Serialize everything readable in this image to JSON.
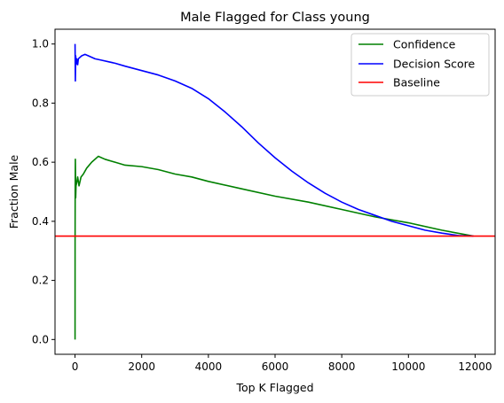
{
  "chart_data": {
    "type": "line",
    "title": "Male Flagged for Class young",
    "xlabel": "Top K Flagged",
    "ylabel": "Fraction Male",
    "xlim": [
      -600,
      12600
    ],
    "ylim": [
      -0.05,
      1.05
    ],
    "xticks": [
      0,
      2000,
      4000,
      6000,
      8000,
      10000,
      12000
    ],
    "yticks": [
      0.0,
      0.2,
      0.4,
      0.6,
      0.8,
      1.0
    ],
    "xtick_labels": [
      "0",
      "2000",
      "4000",
      "6000",
      "8000",
      "10000",
      "12000"
    ],
    "ytick_labels": [
      "0.0",
      "0.2",
      "0.4",
      "0.6",
      "0.8",
      "1.0"
    ],
    "grid": false,
    "legend_position": "top-right",
    "series": [
      {
        "name": "Confidence",
        "color": "#008000",
        "x": [
          1,
          2,
          5,
          10,
          15,
          20,
          30,
          50,
          80,
          120,
          180,
          250,
          350,
          500,
          700,
          900,
          1200,
          1500,
          2000,
          2500,
          3000,
          3500,
          4000,
          5000,
          6000,
          7000,
          8000,
          9000,
          10000,
          11000,
          11950
        ],
        "y": [
          0.0,
          0.33,
          0.5,
          0.61,
          0.55,
          0.48,
          0.52,
          0.53,
          0.55,
          0.52,
          0.55,
          0.56,
          0.58,
          0.6,
          0.62,
          0.61,
          0.6,
          0.59,
          0.585,
          0.575,
          0.56,
          0.55,
          0.535,
          0.51,
          0.485,
          0.465,
          0.44,
          0.415,
          0.395,
          0.37,
          0.35
        ]
      },
      {
        "name": "Decision Score",
        "color": "#0000ff",
        "x": [
          1,
          10,
          20,
          30,
          50,
          80,
          100,
          150,
          200,
          300,
          400,
          600,
          800,
          1000,
          1200,
          1500,
          2000,
          2500,
          3000,
          3500,
          4000,
          4500,
          5000,
          5500,
          6000,
          6500,
          7000,
          7500,
          8000,
          8500,
          9000,
          9500,
          10000,
          10500,
          11000,
          11500,
          11950
        ],
        "y": [
          1.0,
          0.875,
          0.96,
          0.93,
          0.95,
          0.93,
          0.95,
          0.955,
          0.96,
          0.965,
          0.96,
          0.95,
          0.945,
          0.94,
          0.935,
          0.925,
          0.91,
          0.895,
          0.875,
          0.85,
          0.815,
          0.77,
          0.72,
          0.665,
          0.615,
          0.57,
          0.53,
          0.495,
          0.465,
          0.44,
          0.42,
          0.4,
          0.385,
          0.37,
          0.36,
          0.352,
          0.35
        ]
      },
      {
        "name": "Baseline",
        "color": "#ff0000",
        "y": 0.35
      }
    ]
  }
}
